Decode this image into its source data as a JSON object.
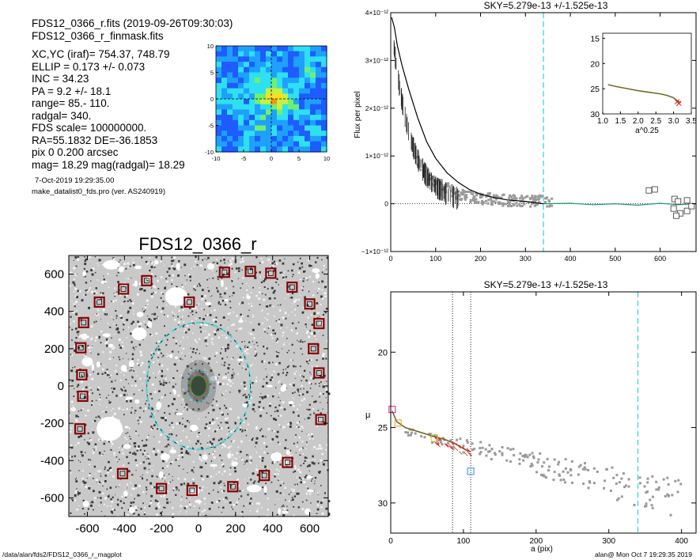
{
  "header_lines": [
    "FDS12_0366_r.fits  (2019-09-26T09:30:03)",
    "FDS12_0366_r_finmask.fits"
  ],
  "param_lines": [
    "XC,YC (iraf)=   754.37, 748.79",
    "ELLIP = 0.173 +/- 0.073",
    "INC   = 34.23",
    "PA    =  9.2 +/-  18.1",
    "range=   85.-  110.",
    "radgal=  340.",
    "FDS scale=  100000000.",
    "RA=55.1832   DE=-36.1853",
    "pix 0 0.200 arcsec",
    "mag=  18.29  mag(radgal)=  18.29"
  ],
  "date_line": "7-Oct-2019 19:29:35.00",
  "program_line": "make_datalist0_fds.pro (ver. AS240919)",
  "footer": {
    "path": "/data/alan/fds2/FDS12_0366_r_magplot",
    "user": "alan@  Mon Oct  7 19:29:35 2019"
  },
  "colors": {
    "contour_fill": [
      "#1e5cff",
      "#1ea0ff",
      "#2ee0f0",
      "#6ff070",
      "#c8f040",
      "#f8e020",
      "#ff8c1e",
      "#ff2010"
    ],
    "dashed_ellipse": "#3fd4e0",
    "mask_box": "#8b0000",
    "profile_black": "#000000",
    "profile_gray": "#9a9a9a",
    "fit_green": "#2aa02a",
    "fit_red": "#e02020",
    "fit_blue": "#2090e0"
  },
  "chart_data": [
    {
      "id": "contour_map",
      "type": "heatmap",
      "xlim": [
        -10,
        10
      ],
      "ylim": [
        -10,
        10
      ],
      "xticks": [
        "-10",
        "-5",
        "0",
        "5",
        "10"
      ],
      "yticks": [
        "10",
        "5",
        "0",
        "-5",
        "-10"
      ],
      "grid": false
    },
    {
      "id": "image_panel",
      "type": "scatter",
      "title": "FDS12_0366_r",
      "xlim": [
        -700,
        700
      ],
      "ylim": [
        -700,
        700
      ],
      "xticks": [
        "-600",
        "-400",
        "-200",
        "0",
        "200",
        "400",
        "600"
      ],
      "yticks": [
        "600",
        "400",
        "200",
        "0",
        "-200",
        "-400",
        "-600"
      ],
      "mask_boxes": [
        [
          -280,
          565
        ],
        [
          -405,
          520
        ],
        [
          -535,
          450
        ],
        [
          -620,
          340
        ],
        [
          -635,
          205
        ],
        [
          -630,
          60
        ],
        [
          -625,
          -55
        ],
        [
          -640,
          -230
        ],
        [
          -410,
          -470
        ],
        [
          -200,
          -550
        ],
        [
          -35,
          -560
        ],
        [
          185,
          -540
        ],
        [
          355,
          -480
        ],
        [
          480,
          -410
        ],
        [
          660,
          -180
        ],
        [
          650,
          70
        ],
        [
          620,
          200
        ],
        [
          650,
          335
        ],
        [
          600,
          440
        ],
        [
          505,
          530
        ],
        [
          390,
          605
        ],
        [
          280,
          615
        ],
        [
          140,
          610
        ],
        [
          -50,
          450
        ]
      ],
      "sky_ellipse": {
        "x0": 0,
        "y0": 0,
        "a": 340,
        "b": 280
      },
      "galaxy_core": {
        "x0": 0,
        "y0": 0,
        "a": 30,
        "b": 55
      }
    },
    {
      "id": "flux_profile",
      "type": "line",
      "title": "SKY=5.279e-13 +/-1.525e-13",
      "ylabel": "Flux per pixel",
      "xlim": [
        0,
        680
      ],
      "ylim": [
        -1e-12,
        4e-12
      ],
      "xticks": [
        "0",
        "100",
        "200",
        "300",
        "400",
        "500",
        "600"
      ],
      "yticks": [
        "4×10⁻¹²",
        "3×10⁻¹²",
        "2×10⁻¹²",
        "1×10⁻¹²",
        "0",
        "−1×10⁻¹²"
      ],
      "sky_radius": 340,
      "series": [
        {
          "values": [
            [
              2,
              3.9e-12
            ],
            [
              8,
              3.7e-12
            ],
            [
              15,
              3.3e-12
            ],
            [
              25,
              2.9e-12
            ],
            [
              40,
              2.4e-12
            ],
            [
              60,
              1.8e-12
            ],
            [
              80,
              1.3e-12
            ],
            [
              100,
              9.5e-13
            ],
            [
              125,
              6.5e-13
            ],
            [
              150,
              4.5e-13
            ],
            [
              175,
              3e-13
            ],
            [
              200,
              2e-13
            ],
            [
              230,
              1.3e-13
            ],
            [
              260,
              8e-14
            ],
            [
              300,
              5e-14
            ],
            [
              340,
              0.0
            ]
          ]
        },
        {
          "values": [
            [
              340,
              0.0
            ],
            [
              400,
              1e-14
            ],
            [
              450,
              -2e-14
            ],
            [
              500,
              0.0
            ],
            [
              550,
              -3e-14
            ],
            [
              600,
              1e-14
            ],
            [
              640,
              -2e-14
            ],
            [
              680,
              0.0
            ]
          ]
        }
      ],
      "outlier_boxes": [
        [
          575,
          2.8e-13
        ],
        [
          588,
          3e-13
        ],
        [
          632,
          1e-13
        ],
        [
          640,
          5e-14
        ],
        [
          660,
          7e-14
        ],
        [
          630,
          -1e-13
        ],
        [
          645,
          -2e-13
        ],
        [
          660,
          -1.5e-13
        ],
        [
          670,
          -5e-14
        ],
        [
          636,
          -2.5e-13
        ]
      ]
    },
    {
      "id": "inset_profile",
      "type": "line",
      "xlabel": "a^0.25",
      "xlim": [
        1.0,
        3.5
      ],
      "ylim": [
        30,
        14
      ],
      "xticks": [
        "1.0",
        "1.5",
        "2.0",
        "2.5",
        "3.0",
        "3.5"
      ],
      "yticks": [
        "15",
        "20",
        "25",
        "30"
      ],
      "series": [
        {
          "values": [
            [
              1.15,
              24.2
            ],
            [
              1.4,
              24.6
            ],
            [
              1.7,
              25.0
            ],
            [
              2.0,
              25.4
            ],
            [
              2.3,
              25.7
            ],
            [
              2.6,
              26.0
            ],
            [
              2.8,
              26.3
            ],
            [
              3.0,
              26.8
            ],
            [
              3.1,
              27.4
            ],
            [
              3.2,
              27.8
            ]
          ]
        }
      ]
    },
    {
      "id": "mu_profile",
      "type": "scatter",
      "title": "SKY=5.279e-13 +/-1.525e-13",
      "xlabel": "a (pix)",
      "ylabel": "μ",
      "xlim": [
        0,
        420
      ],
      "ylim": [
        32,
        16
      ],
      "xticks": [
        "0",
        "100",
        "200",
        "300",
        "400"
      ],
      "yticks": [
        "20",
        "25",
        "30"
      ],
      "range_lines": [
        85,
        110
      ],
      "sky_radius": 340,
      "series": [
        {
          "values": [
            [
              2,
              23.9
            ],
            [
              8,
              24.6
            ],
            [
              20,
              25.0
            ],
            [
              40,
              25.3
            ],
            [
              60,
              25.6
            ],
            [
              75,
              25.8
            ],
            [
              90,
              26.1
            ],
            [
              100,
              26.4
            ],
            [
              110,
              26.6
            ],
            [
              130,
              27.1
            ],
            [
              150,
              27.3
            ],
            [
              175,
              27.8
            ],
            [
              200,
              28.3
            ],
            [
              230,
              28.6
            ],
            [
              250,
              29.0
            ],
            [
              280,
              29.6
            ]
          ]
        }
      ],
      "markers": [
        [
          2,
          23.8
        ],
        [
          10,
          24.7
        ],
        [
          60,
          25.7
        ],
        [
          110,
          27.9
        ]
      ]
    }
  ]
}
